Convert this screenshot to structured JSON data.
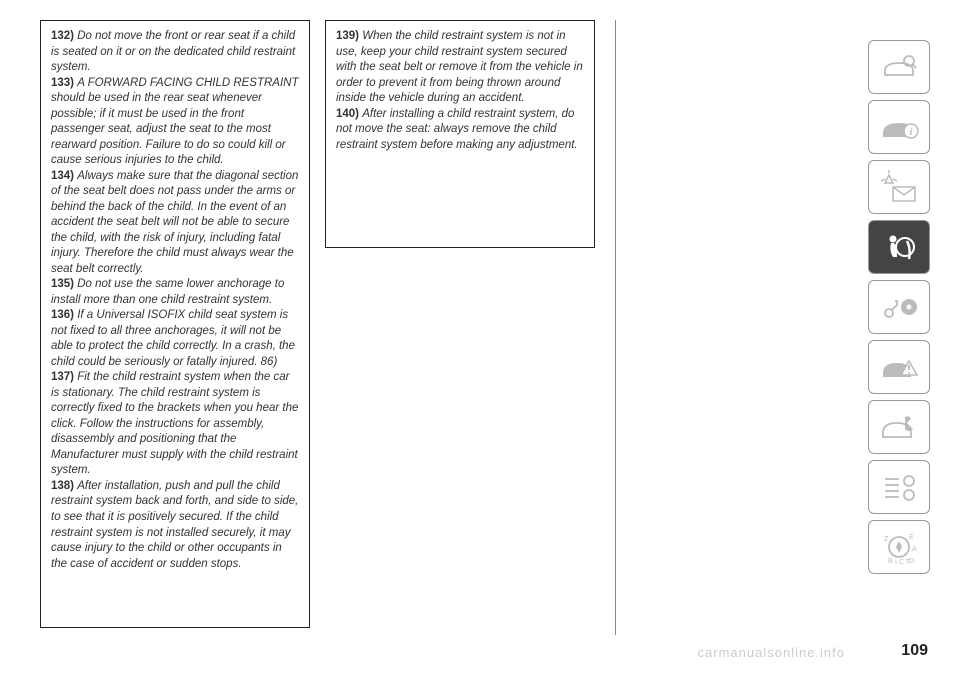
{
  "column1": {
    "items": [
      {
        "num": "132)",
        "text": "Do not move the front or rear seat if a child is seated on it or on the dedicated child restraint system."
      },
      {
        "num": "133)",
        "text": "A FORWARD FACING CHILD RESTRAINT should be used in the rear seat whenever possible; if it must be used in the front passenger seat, adjust the seat to the most rearward position. Failure to do so could kill or cause serious injuries to the child."
      },
      {
        "num": "134)",
        "text": "Always make sure that the diagonal section of the seat belt does not pass under the arms or behind the back of the child. In the event of an accident the seat belt will not be able to secure the child, with the risk of injury, including fatal injury. Therefore the child must always wear the seat belt correctly."
      },
      {
        "num": "135)",
        "text": "Do not use the same lower anchorage to install more than one child restraint system."
      },
      {
        "num": "136)",
        "text": "If a Universal ISOFIX child seat system is not fixed to all three anchorages, it will not be able to protect the child correctly. In a crash, the child could be seriously or fatally injured. 86)"
      },
      {
        "num": "137)",
        "text": "Fit the child restraint system when the car is stationary. The child restraint system is correctly fixed to the brackets when you hear the click. Follow the instructions for assembly, disassembly and positioning that the Manufacturer must supply with the child restraint system."
      },
      {
        "num": "138)",
        "text": "After installation, push and pull the child restraint system back and forth, and side to side, to see that it is positively secured. If the child restraint system is not installed securely, it may cause injury to the child or other occupants in the case of accident or sudden stops."
      }
    ]
  },
  "column2": {
    "items": [
      {
        "num": "139)",
        "text": "When the child restraint system is not in use, keep your child restraint system secured with the seat belt or remove it from the vehicle in order to prevent it from being thrown around inside the vehicle during an accident."
      },
      {
        "num": "140)",
        "text": "After installing a child restraint system, do not move the seat: always remove the child restraint system before making any adjustment."
      }
    ]
  },
  "pageNumber": "109",
  "watermark": "carmanualsonline.info",
  "sidebar": {
    "icons": [
      {
        "name": "car-search-icon",
        "active": false
      },
      {
        "name": "car-info-icon",
        "active": false
      },
      {
        "name": "light-mail-icon",
        "active": false
      },
      {
        "name": "airbag-icon",
        "active": true
      },
      {
        "name": "key-wheel-icon",
        "active": false
      },
      {
        "name": "car-warning-icon",
        "active": false
      },
      {
        "name": "car-wrench-icon",
        "active": false
      },
      {
        "name": "list-gears-icon",
        "active": false
      },
      {
        "name": "compass-icon",
        "active": false
      }
    ],
    "iconColor": "#bbbbbb",
    "activeIconColor": "#ffffff",
    "activeBg": "#444444"
  }
}
